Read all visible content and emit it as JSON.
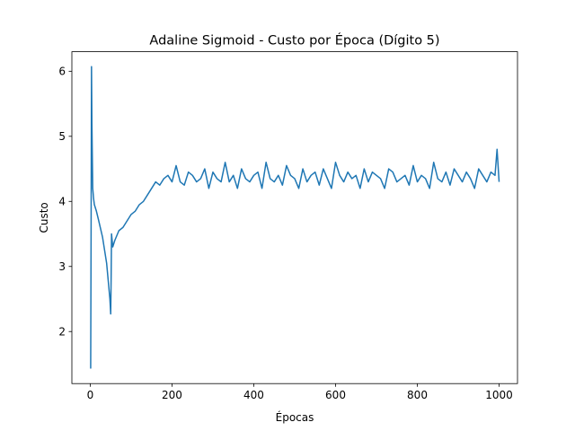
{
  "chart_data": {
    "type": "line",
    "title": "Adaline Sigmoid - Custo por Época (Dígito 5)",
    "xlabel": "Épocas",
    "ylabel": "Custo",
    "xlim": [
      -45,
      1045
    ],
    "ylim": [
      1.2,
      6.3
    ],
    "xticks": [
      0,
      200,
      400,
      600,
      800,
      1000
    ],
    "yticks": [
      2,
      3,
      4,
      5,
      6
    ],
    "grid": false,
    "line_color": "#1f77b4",
    "series": [
      {
        "x": [
          1,
          2,
          3,
          4,
          5,
          6,
          8,
          10,
          15,
          20,
          30,
          40,
          48,
          50,
          51,
          52,
          55,
          60,
          70,
          80,
          90,
          100,
          110,
          120,
          130,
          140,
          150,
          160,
          170,
          180,
          190,
          200,
          210,
          220,
          230,
          240,
          250,
          260,
          270,
          280,
          290,
          300,
          310,
          320,
          330,
          340,
          350,
          360,
          370,
          380,
          390,
          400,
          410,
          420,
          430,
          440,
          450,
          460,
          470,
          480,
          490,
          500,
          510,
          520,
          530,
          540,
          550,
          560,
          570,
          580,
          590,
          600,
          610,
          620,
          630,
          640,
          650,
          660,
          670,
          680,
          690,
          700,
          710,
          720,
          730,
          740,
          750,
          760,
          770,
          780,
          790,
          800,
          810,
          820,
          830,
          840,
          850,
          860,
          870,
          880,
          890,
          900,
          910,
          920,
          930,
          940,
          950,
          960,
          970,
          980,
          990,
          995,
          1000
        ],
        "y": [
          1.43,
          3.5,
          6.07,
          5.2,
          4.7,
          4.2,
          4.05,
          3.95,
          3.85,
          3.72,
          3.45,
          3.05,
          2.5,
          2.27,
          2.8,
          3.5,
          3.3,
          3.4,
          3.55,
          3.6,
          3.7,
          3.8,
          3.85,
          3.95,
          4.0,
          4.1,
          4.2,
          4.3,
          4.25,
          4.35,
          4.4,
          4.3,
          4.55,
          4.3,
          4.25,
          4.45,
          4.4,
          4.3,
          4.35,
          4.5,
          4.2,
          4.45,
          4.35,
          4.3,
          4.6,
          4.3,
          4.4,
          4.2,
          4.5,
          4.35,
          4.3,
          4.4,
          4.45,
          4.2,
          4.6,
          4.35,
          4.3,
          4.4,
          4.25,
          4.55,
          4.4,
          4.35,
          4.2,
          4.5,
          4.3,
          4.4,
          4.45,
          4.25,
          4.5,
          4.35,
          4.2,
          4.6,
          4.4,
          4.3,
          4.45,
          4.35,
          4.4,
          4.2,
          4.5,
          4.3,
          4.45,
          4.4,
          4.35,
          4.2,
          4.5,
          4.45,
          4.3,
          4.35,
          4.4,
          4.25,
          4.55,
          4.3,
          4.4,
          4.35,
          4.2,
          4.6,
          4.35,
          4.3,
          4.45,
          4.25,
          4.5,
          4.4,
          4.3,
          4.45,
          4.35,
          4.2,
          4.5,
          4.4,
          4.3,
          4.45,
          4.4,
          4.8,
          4.3
        ]
      }
    ]
  }
}
